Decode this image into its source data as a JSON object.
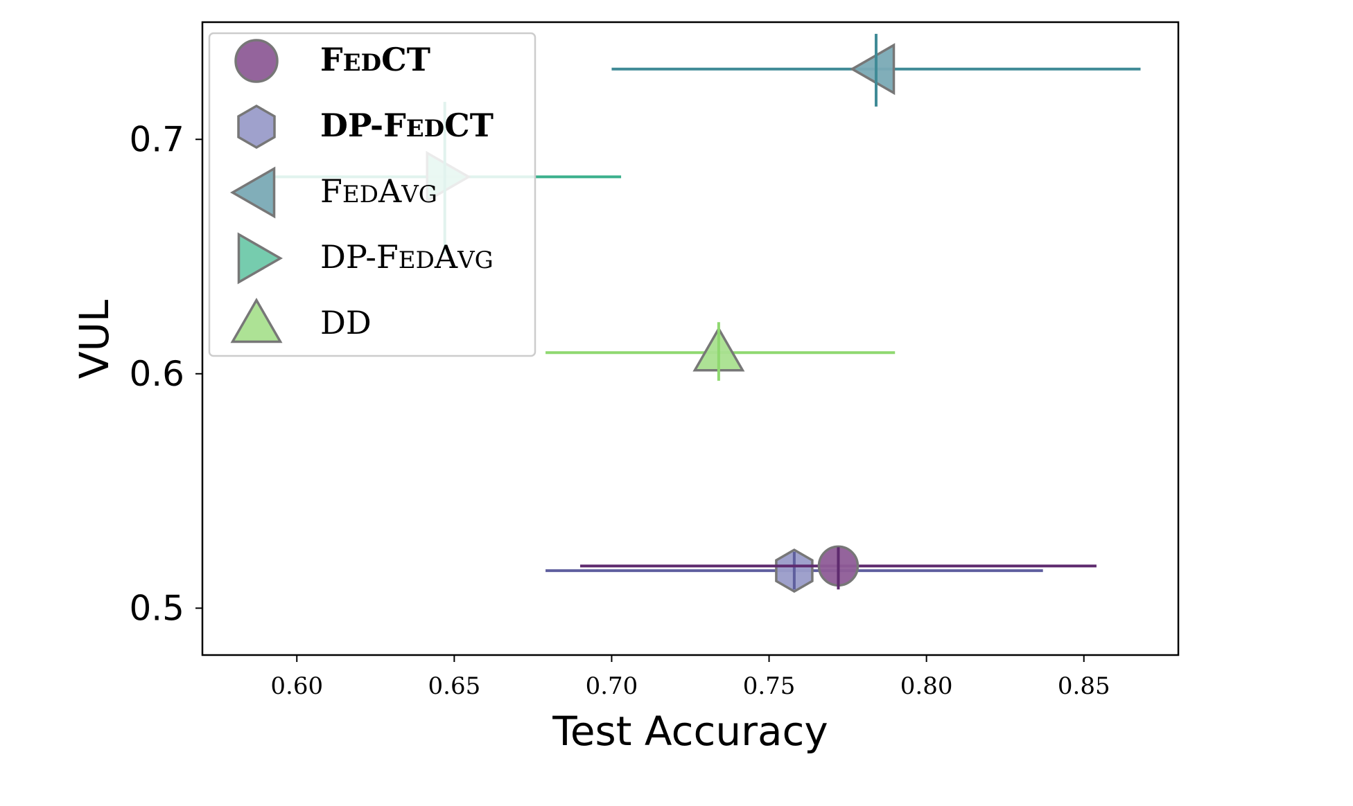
{
  "chart_data": {
    "type": "scatter",
    "title": "",
    "xlabel": "Test Accuracy",
    "ylabel": "VUL",
    "xlim": [
      0.57,
      0.88
    ],
    "ylim": [
      0.75,
      0.48
    ],
    "y_inverted": true,
    "xticks": [
      "0.60",
      "0.65",
      "0.70",
      "0.75",
      "0.80",
      "0.85"
    ],
    "yticks": [
      "0.5",
      "0.6",
      "0.7"
    ],
    "grid": false,
    "legend_placement": "top-left",
    "series": [
      {
        "name": "FedCT",
        "marker": "circle",
        "color": "#8e5c97",
        "err_color": "#5e2a6e",
        "x": 0.772,
        "y": 0.518,
        "x_err": [
          0.69,
          0.854
        ],
        "y_err": [
          0.508,
          0.526
        ]
      },
      {
        "name": "DP-FedCT",
        "marker": "hexagon",
        "color": "#9a9cc9",
        "err_color": "#5f5f9e",
        "x": 0.758,
        "y": 0.516,
        "x_err": [
          0.679,
          0.837
        ],
        "y_err": [
          0.508,
          0.524
        ]
      },
      {
        "name": "FedAvg",
        "marker": "triangle-left",
        "color": "#7aaab5",
        "err_color": "#3f8a96",
        "x": 0.784,
        "y": 0.73,
        "x_err": [
          0.7,
          0.868
        ],
        "y_err": [
          0.714,
          0.745
        ]
      },
      {
        "name": "DP-FedAvg",
        "marker": "triangle-right",
        "color": "#6fc9aa",
        "err_color": "#3bb08c",
        "x": 0.647,
        "y": 0.684,
        "x_err": [
          0.591,
          0.703
        ],
        "y_err": [
          0.651,
          0.716
        ]
      },
      {
        "name": "DD",
        "marker": "triangle-up",
        "color": "#a9e08f",
        "err_color": "#8fd870",
        "x": 0.734,
        "y": 0.609,
        "x_err": [
          0.679,
          0.79
        ],
        "y_err": [
          0.597,
          0.622
        ]
      }
    ],
    "legend": [
      {
        "caps": "F",
        "small": "ED",
        "caps2": "CT",
        "small2": "",
        "prefix": "",
        "bold": true
      },
      {
        "caps": "F",
        "small": "ED",
        "caps2": "CT",
        "small2": "",
        "prefix": "DP-",
        "bold": true
      },
      {
        "caps": "F",
        "small": "ED",
        "caps2": "A",
        "small2": "VG",
        "prefix": "",
        "bold": false
      },
      {
        "caps": "F",
        "small": "ED",
        "caps2": "A",
        "small2": "VG",
        "prefix": "DP-",
        "bold": false
      },
      {
        "caps": "DD",
        "small": "",
        "caps2": "",
        "small2": "",
        "prefix": "",
        "bold": false
      }
    ]
  }
}
